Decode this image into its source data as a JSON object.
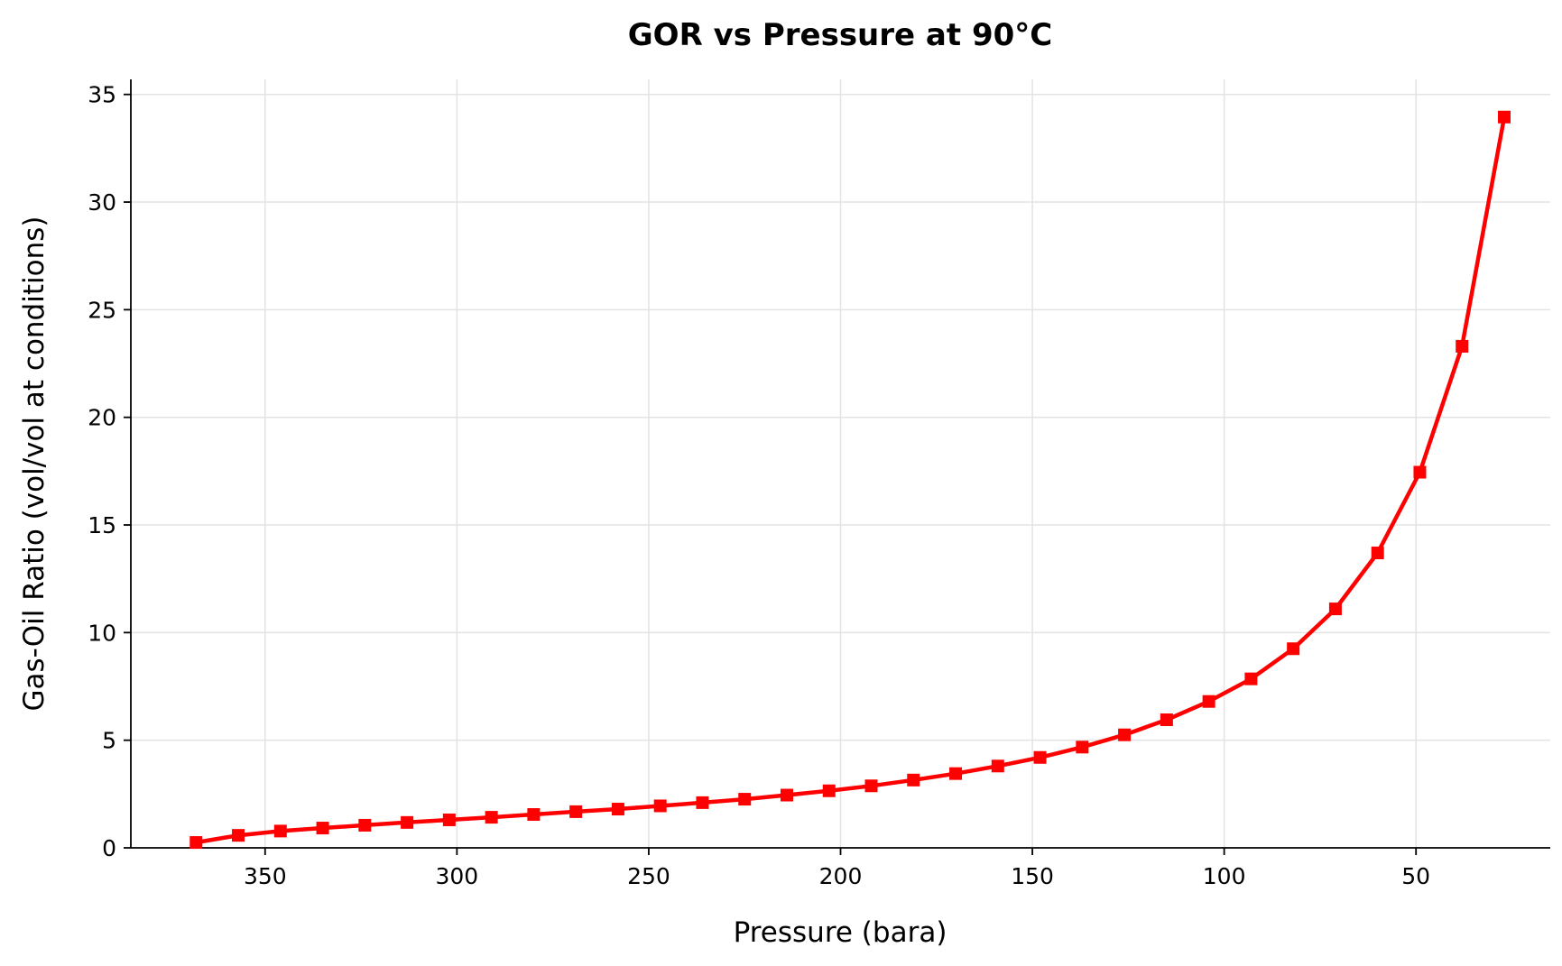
{
  "chart_data": {
    "type": "line",
    "title": "GOR vs Pressure at 90°C",
    "xlabel": "Pressure (bara)",
    "ylabel": "Gas-Oil Ratio (vol/vol at conditions)",
    "xlim": [
      385,
      15
    ],
    "ylim": [
      0,
      35.7
    ],
    "x_reversed": true,
    "xticks": [
      350,
      300,
      250,
      200,
      150,
      100,
      50
    ],
    "yticks": [
      0,
      5,
      10,
      15,
      20,
      25,
      30,
      35
    ],
    "grid": true,
    "legend": "none",
    "colors": {
      "line": "#ff0000"
    },
    "marker": "square",
    "series": [
      {
        "x": [
          368,
          357,
          346,
          335,
          324,
          313,
          302,
          291,
          280,
          269,
          258,
          247,
          236,
          225,
          214,
          203,
          192,
          181,
          170,
          159,
          148,
          137,
          126,
          115,
          104,
          93,
          82,
          71,
          60,
          49,
          38,
          27
        ],
        "values": [
          0.25,
          0.58,
          0.78,
          0.92,
          1.05,
          1.18,
          1.3,
          1.42,
          1.55,
          1.68,
          1.8,
          1.95,
          2.1,
          2.26,
          2.45,
          2.65,
          2.88,
          3.15,
          3.45,
          3.8,
          4.2,
          4.68,
          5.25,
          5.95,
          6.8,
          7.85,
          9.25,
          11.1,
          13.7,
          17.45,
          23.3,
          33.95
        ]
      }
    ]
  }
}
